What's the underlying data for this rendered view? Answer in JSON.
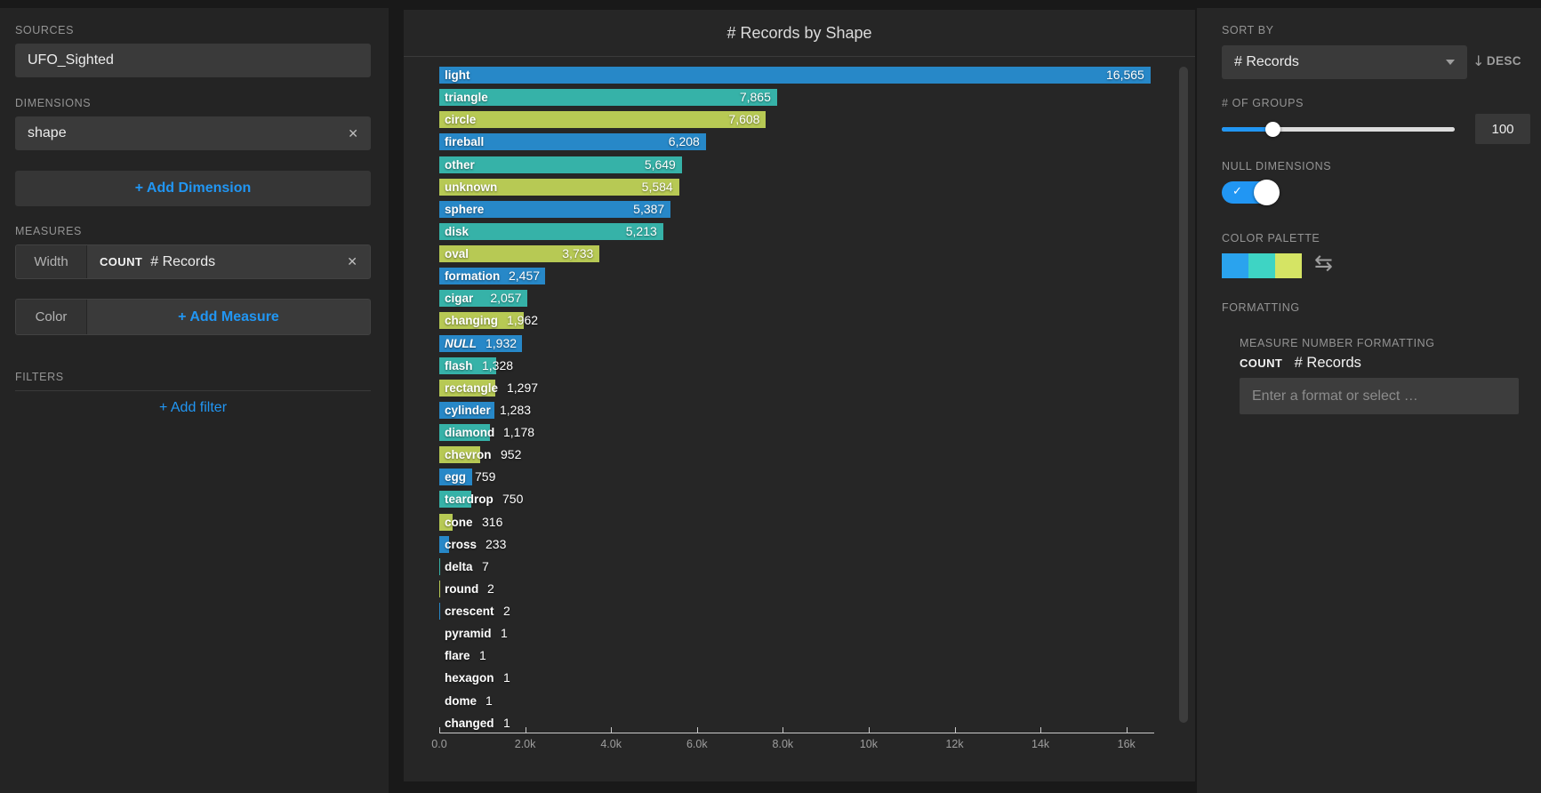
{
  "app": {
    "accent_blue": "#2196f3",
    "background": "#191919"
  },
  "left_panel": {
    "sources_label": "SOURCES",
    "source_value": "UFO_Sighted",
    "dimensions_label": "DIMENSIONS",
    "dimension_value": "shape",
    "add_dimension_label": "+ Add Dimension",
    "measures_label": "MEASURES",
    "width_slot_label": "Width",
    "width_measure_agg": "COUNT",
    "width_measure_name": "# Records",
    "color_slot_label": "Color",
    "add_measure_label": "+ Add Measure",
    "filters_label": "FILTERS",
    "add_filter_label": "+ Add filter"
  },
  "chart": {
    "title": "# Records by Shape"
  },
  "chart_data": {
    "type": "bar",
    "orientation": "horizontal",
    "title": "# Records by Shape",
    "xlabel": "",
    "ylabel": "shape",
    "xlim": [
      0,
      16565
    ],
    "grid": false,
    "categories": [
      "light",
      "triangle",
      "circle",
      "fireball",
      "other",
      "unknown",
      "sphere",
      "disk",
      "oval",
      "formation",
      "cigar",
      "changing",
      "NULL",
      "flash",
      "rectangle",
      "cylinder",
      "diamond",
      "chevron",
      "egg",
      "teardrop",
      "cone",
      "cross",
      "delta",
      "round",
      "crescent",
      "pyramid",
      "flare",
      "hexagon",
      "dome",
      "changed"
    ],
    "values": [
      16565,
      7865,
      7608,
      6208,
      5649,
      5584,
      5387,
      5213,
      3733,
      2457,
      2057,
      1962,
      1932,
      1328,
      1297,
      1283,
      1178,
      952,
      759,
      750,
      316,
      233,
      7,
      2,
      2,
      1,
      1,
      1,
      1,
      1
    ],
    "bar_color_cycle": [
      "#2788c8",
      "#36b2a8",
      "#b7c954"
    ],
    "x_ticks": [
      {
        "label": "0.0",
        "value": 0
      },
      {
        "label": "2.0k",
        "value": 2000
      },
      {
        "label": "4.0k",
        "value": 4000
      },
      {
        "label": "6.0k",
        "value": 6000
      },
      {
        "label": "8.0k",
        "value": 8000
      },
      {
        "label": "10k",
        "value": 10000
      },
      {
        "label": "12k",
        "value": 12000
      },
      {
        "label": "14k",
        "value": 14000
      },
      {
        "label": "16k",
        "value": 16000
      }
    ]
  },
  "right_panel": {
    "sort_by_label": "SORT BY",
    "sort_value": "# Records",
    "sort_direction": "DESC",
    "groups_label": "# OF GROUPS",
    "groups_value": "100",
    "null_dimensions_label": "NULL DIMENSIONS",
    "null_dimensions_on": true,
    "color_palette_label": "COLOR PALETTE",
    "palette_colors": [
      "#2aa3ee",
      "#3ed4c4",
      "#d5e464"
    ],
    "formatting_label": "FORMATTING",
    "measure_number_formatting_label": "MEASURE NUMBER FORMATTING",
    "measure_agg": "COUNT",
    "measure_name": "# Records",
    "format_placeholder": "Enter a format or select …"
  }
}
